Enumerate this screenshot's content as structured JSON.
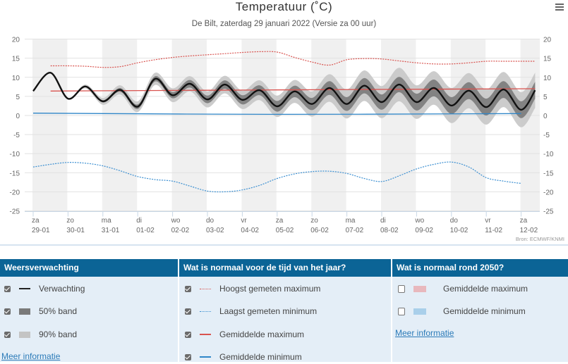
{
  "chart_data": {
    "type": "area",
    "title": "Temperatuur (˚C)",
    "subtitle": "De Bilt, zaterdag 29 januari 2022 (Versie za 00 uur)",
    "credits": "Bron: ECMWF/KNMI",
    "ylim": [
      -25,
      20
    ],
    "yticks": [
      20,
      15,
      10,
      5,
      0,
      -5,
      -10,
      -15,
      -20,
      -25
    ],
    "grid": true,
    "x_tick_days": [
      "za",
      "zo",
      "ma",
      "di",
      "wo",
      "do",
      "vr",
      "za",
      "zo",
      "ma",
      "di",
      "wo",
      "do",
      "vr",
      "za"
    ],
    "x_tick_dates": [
      "29-01",
      "30-01",
      "31-01",
      "01-02",
      "02-02",
      "03-02",
      "04-02",
      "05-02",
      "06-02",
      "07-02",
      "08-02",
      "09-02",
      "10-02",
      "11-02",
      "12-02"
    ],
    "x_unit": "days from 29-01",
    "forecast": {
      "t": [
        0,
        0.5,
        1,
        1.5,
        2,
        2.5,
        3,
        3.5,
        4,
        4.5,
        5,
        5.5,
        6,
        6.5,
        7,
        7.5,
        8,
        8.5,
        9,
        9.5,
        10,
        10.5,
        11,
        11.5,
        12,
        12.5,
        13,
        13.5,
        14,
        14.4
      ],
      "median": [
        6.4,
        11.2,
        4.4,
        7.6,
        3.7,
        6.7,
        2.3,
        9.6,
        5.3,
        8.3,
        4.2,
        8.1,
        4.1,
        6.6,
        2.4,
        6.3,
        3.0,
        7.2,
        3.0,
        7.8,
        3.5,
        8.1,
        3.5,
        7.2,
        2.6,
        6.5,
        2.2,
        6.8,
        1.5,
        6.6
      ],
      "p25": [
        6.3,
        11.1,
        4.3,
        7.5,
        3.4,
        6.2,
        1.7,
        8.9,
        4.5,
        7.3,
        3.2,
        7.0,
        2.9,
        5.3,
        1.0,
        4.8,
        1.4,
        5.4,
        1.2,
        5.8,
        1.5,
        6.1,
        1.3,
        5.0,
        0.4,
        4.3,
        0.0,
        4.6,
        -0.7,
        4.4
      ],
      "p75": [
        6.5,
        11.3,
        4.5,
        7.7,
        4.0,
        7.2,
        2.9,
        10.3,
        6.1,
        9.3,
        5.2,
        9.2,
        5.3,
        7.9,
        3.8,
        7.8,
        4.6,
        9.0,
        4.8,
        9.8,
        5.5,
        10.1,
        5.7,
        9.4,
        4.8,
        8.7,
        4.4,
        9.0,
        3.7,
        8.8
      ],
      "p5": [
        6.2,
        11.0,
        4.2,
        7.1,
        2.8,
        5.5,
        0.9,
        8.0,
        3.5,
        6.3,
        2.1,
        5.8,
        1.7,
        4.0,
        -0.4,
        3.3,
        -0.3,
        3.6,
        -0.8,
        3.8,
        -0.7,
        3.7,
        -0.9,
        2.8,
        -2.0,
        1.9,
        -2.4,
        2.2,
        -3.1,
        2.0
      ],
      "p95": [
        6.6,
        11.4,
        4.6,
        8.1,
        4.6,
        7.9,
        3.7,
        11.2,
        7.1,
        10.3,
        6.3,
        10.4,
        6.5,
        9.2,
        5.2,
        9.3,
        6.3,
        10.8,
        6.8,
        11.8,
        7.7,
        12.5,
        7.9,
        11.6,
        7.2,
        11.1,
        6.8,
        11.4,
        6.1,
        11.2
      ]
    },
    "record_max": {
      "t": [
        0.5,
        1,
        1.5,
        2,
        2.5,
        3,
        3.5,
        4,
        4.5,
        5,
        5.5,
        6,
        6.5,
        7,
        7.5,
        8,
        8.5,
        9,
        9.5,
        10,
        10.5,
        11,
        11.5,
        12,
        12.5,
        13,
        13.5,
        14,
        14.4
      ],
      "values": [
        13,
        13,
        12.9,
        12.6,
        12.8,
        13.8,
        14.6,
        15.2,
        15.6,
        15.9,
        16.2,
        16.5,
        16.7,
        16.6,
        15.2,
        14.0,
        13.2,
        14.6,
        14.9,
        14.8,
        14.3,
        13.8,
        13.5,
        13.5,
        13.8,
        14.2,
        14.2,
        14.2,
        14.2
      ]
    },
    "record_min": {
      "t": [
        0,
        0.5,
        1,
        1.5,
        2,
        2.5,
        3,
        3.5,
        4,
        4.5,
        5,
        5.5,
        6,
        6.5,
        7,
        7.5,
        8,
        8.5,
        9,
        9.5,
        10,
        10.5,
        11,
        11.5,
        12,
        12.5,
        13,
        13.5,
        14
      ],
      "values": [
        -13.5,
        -12.8,
        -12.3,
        -12.5,
        -13.2,
        -14.5,
        -16,
        -16.8,
        -17.2,
        -18.5,
        -19.8,
        -20,
        -19.5,
        -18.3,
        -16.5,
        -15.3,
        -14.7,
        -14.6,
        -15.2,
        -16.5,
        -17.3,
        -15.8,
        -14,
        -12.8,
        -12.2,
        -13.5,
        -16.3,
        -17.2,
        -17.8
      ]
    },
    "mean_max": {
      "t": [
        0.5,
        7,
        14.4
      ],
      "values": [
        6.4,
        6.7,
        7.0
      ]
    },
    "mean_min": {
      "t": [
        0,
        7,
        14
      ],
      "values": [
        0.6,
        0.3,
        0.5
      ]
    },
    "colors": {
      "forecast": "#111111",
      "band50": "#7a7a7a",
      "band90": "#c6c6c6",
      "record_max": "#d9534f",
      "record_min": "#3b8fd1",
      "mean_max": "#d9534f",
      "mean_min": "#2f86c8",
      "stripe": "#f0f0f0",
      "header": "#0b6496"
    }
  },
  "legend": {
    "col1": {
      "title": "Weersverwachting",
      "items": [
        "Verwachting",
        "50% band",
        "90% band"
      ],
      "checked": [
        true,
        true,
        true
      ],
      "link": "Meer informatie"
    },
    "col2": {
      "title": "Wat is normaal voor de tijd van het jaar?",
      "items": [
        "Hoogst gemeten maximum",
        "Laagst gemeten minimum",
        "Gemiddelde maximum",
        "Gemiddelde minimum"
      ],
      "checked": [
        true,
        true,
        true,
        true
      ]
    },
    "col3": {
      "title": "Wat is normaal rond 2050?",
      "items": [
        "Gemiddelde maximum",
        "Gemiddelde minimum"
      ],
      "checked": [
        false,
        false
      ],
      "link": "Meer informatie"
    }
  },
  "menu_icon": "hamburger-icon"
}
